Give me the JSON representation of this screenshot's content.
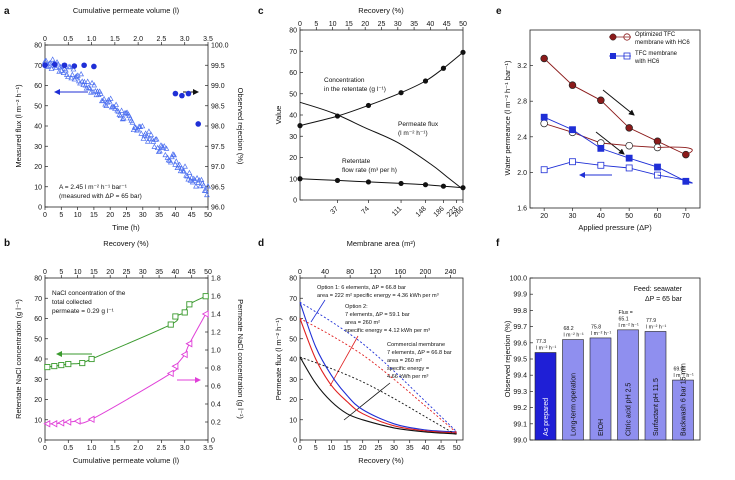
{
  "colors": {
    "blue": "#1f2fd6",
    "lightblue": "#4c6ff0",
    "green": "#3a9a2e",
    "magenta": "#e040d8",
    "darkred": "#8b1a1a",
    "red": "#e02020",
    "black": "#111111",
    "bar_dark": "#1f1fd6",
    "bar_light": "#8f8fef"
  },
  "chart_data": [
    {
      "panel": "a",
      "type": "scatter",
      "xlabel_top": "Cumulative permeate volume (l)",
      "xlim_top": [
        0,
        3.5
      ],
      "xticks_top": [
        "0",
        "0.5",
        "1.0",
        "1.5",
        "2.0",
        "2.5",
        "3.0",
        "3.5"
      ],
      "xlabel": "Time (h)",
      "xlim": [
        0,
        50
      ],
      "xticks": [
        "0",
        "5",
        "10",
        "15",
        "20",
        "25",
        "30",
        "35",
        "40",
        "45",
        "50"
      ],
      "ylabel": "Measured flux (l m⁻² h⁻¹)",
      "ylim": [
        0,
        80
      ],
      "yticks": [
        "0",
        "10",
        "20",
        "30",
        "40",
        "50",
        "60",
        "70",
        "80"
      ],
      "ylabel_right": "Observed rejection (%)",
      "ylim_right": [
        96.0,
        100.0
      ],
      "yticks_right": [
        "96.0",
        "96.5",
        "97.0",
        "97.5",
        "98.0",
        "98.5",
        "99.0",
        "99.5",
        "100.0"
      ],
      "annotation_1": "A = 2.45 l m⁻² h⁻¹ bar⁻¹",
      "annotation_2": "(measured with ΔP = 65 bar)",
      "flux_trend": {
        "x": [
          0,
          5,
          10,
          15,
          20,
          25,
          30,
          35,
          40,
          45,
          50
        ],
        "y": [
          72,
          69,
          64,
          58,
          51,
          44,
          37,
          30,
          23,
          15,
          8
        ]
      },
      "rejection": {
        "x": [
          0,
          3,
          6,
          9,
          12,
          15,
          40,
          42,
          44,
          47
        ],
        "y": [
          99.5,
          99.52,
          99.5,
          99.48,
          99.5,
          99.47,
          98.8,
          98.75,
          98.8,
          98.05
        ]
      }
    },
    {
      "panel": "b",
      "type": "line",
      "xlabel_top": "Recovery (%)",
      "xlim_top": [
        0,
        50
      ],
      "xticks_top": [
        "0",
        "5",
        "10",
        "15",
        "20",
        "25",
        "30",
        "35",
        "40",
        "45",
        "50"
      ],
      "xlabel": "Cumulative permeate volume (l)",
      "xlim": [
        0,
        3.5
      ],
      "xticks": [
        "0",
        "0.5",
        "1.0",
        "1.5",
        "2.0",
        "2.5",
        "3.0",
        "3.5"
      ],
      "ylabel": "Retentate NaCl concentration (g l⁻¹)",
      "ylim": [
        0,
        80
      ],
      "yticks": [
        "0",
        "10",
        "20",
        "30",
        "40",
        "50",
        "60",
        "70",
        "80"
      ],
      "ylabel_right": "Permeate NaCl concentration (g l⁻¹)",
      "ylim_right": [
        0,
        1.8
      ],
      "yticks_right": [
        "0",
        "0.2",
        "0.4",
        "0.6",
        "0.8",
        "1.0",
        "1.2",
        "1.4",
        "1.6",
        "1.8"
      ],
      "annotation": [
        "NaCl concentration of the",
        "total collected",
        "permeate = 0.29 g l⁻¹"
      ],
      "series": [
        {
          "name": "Retentate",
          "x": [
            0.05,
            0.2,
            0.35,
            0.5,
            0.8,
            1.0,
            2.7,
            2.8,
            3.0,
            3.1,
            3.45
          ],
          "y": [
            36,
            36.5,
            37,
            37.5,
            38,
            40,
            57,
            61,
            63,
            67,
            71
          ]
        },
        {
          "name": "Permeate",
          "x": [
            0.05,
            0.2,
            0.35,
            0.5,
            0.7,
            1.0,
            2.7,
            2.8,
            3.0,
            3.1,
            3.45
          ],
          "y": [
            0.18,
            0.18,
            0.19,
            0.2,
            0.21,
            0.23,
            0.74,
            0.82,
            0.95,
            1.07,
            1.4
          ]
        }
      ]
    },
    {
      "panel": "c",
      "type": "line",
      "xlabel_top": "Recovery (%)",
      "xlim_top": [
        0,
        50
      ],
      "xticks_top": [
        "0",
        "5",
        "10",
        "15",
        "20",
        "25",
        "30",
        "35",
        "40",
        "45",
        "50"
      ],
      "xticks_bottom": [
        "37",
        "74",
        "111",
        "148",
        "186",
        "223",
        "260"
      ],
      "ylabel": "Value",
      "ylim": [
        0,
        80
      ],
      "yticks": [
        "0",
        "10",
        "20",
        "30",
        "40",
        "50",
        "60",
        "70",
        "80"
      ],
      "label_conc": [
        "Concentration",
        "in the retentate (g l⁻¹)"
      ],
      "label_flux": [
        "Permeate flux",
        "(l m⁻² h⁻¹)"
      ],
      "label_rate": [
        "Retentate",
        "flow rate (m³ per h)"
      ],
      "series": [
        {
          "name": "Concentration in the retentate",
          "x": [
            0,
            11.5,
            21,
            31,
            38.5,
            44,
            50
          ],
          "y": [
            35,
            39.5,
            44.5,
            50.5,
            56,
            62,
            69.5
          ]
        },
        {
          "name": "Permeate flux",
          "x": [
            0,
            10,
            20,
            30,
            40,
            45,
            50
          ],
          "y": [
            46,
            41,
            34,
            27,
            17,
            11,
            5
          ]
        },
        {
          "name": "Retentate flow rate",
          "x": [
            0,
            11.5,
            21,
            31,
            38.5,
            44,
            50
          ],
          "y": [
            10,
            9.2,
            8.5,
            7.8,
            7.2,
            6.5,
            5.8
          ]
        }
      ]
    },
    {
      "panel": "d",
      "type": "line",
      "xlabel_top": "Membrane area (m²)",
      "xlim_top": [
        0,
        260
      ],
      "xticks_top": [
        "0",
        "40",
        "80",
        "120",
        "160",
        "200",
        "240"
      ],
      "xlabel": "Recovery (%)",
      "xlim": [
        0,
        52
      ],
      "xticks": [
        "0",
        "5",
        "10",
        "15",
        "20",
        "25",
        "30",
        "35",
        "40",
        "45",
        "50"
      ],
      "ylabel": "Permeate flux (l m⁻² h⁻¹)",
      "ylim": [
        0,
        80
      ],
      "yticks": [
        "0",
        "10",
        "20",
        "30",
        "40",
        "50",
        "60",
        "70",
        "80"
      ],
      "option1": [
        "Option 1: 6 elements, ΔP = 66.8 bar",
        "area = 222 m² specific energy = 4.36 kWh per m³"
      ],
      "option2": [
        "Option 2:",
        "7 elements, ΔP = 59.1 bar",
        "area = 260 m²",
        "specific energy = 4.12 kWh per m³"
      ],
      "commercial": [
        "Commercial membrane",
        "7 elements, ΔP = 66.8 bar",
        "area = 260 m²",
        "specific energy =",
        "4.66 kWh per m³"
      ],
      "series": [
        {
          "name": "Option 1",
          "x": [
            0,
            5,
            10,
            15,
            20,
            30,
            40,
            50
          ],
          "y": [
            68,
            46,
            32,
            22,
            15,
            8,
            5,
            4
          ]
        },
        {
          "name": "Option 2",
          "x": [
            0,
            5,
            10,
            15,
            20,
            30,
            40,
            50
          ],
          "y": [
            60,
            40,
            27,
            19,
            13,
            7,
            4.5,
            3.5
          ]
        },
        {
          "name": "Commercial",
          "x": [
            0,
            5,
            10,
            15,
            20,
            30,
            40,
            50
          ],
          "y": [
            41,
            28,
            19,
            13,
            10,
            6,
            4,
            3
          ]
        }
      ]
    },
    {
      "panel": "e",
      "type": "line",
      "xlabel": "Applied pressure (ΔP)",
      "xlim": [
        15,
        75
      ],
      "xticks": [
        "20",
        "30",
        "40",
        "50",
        "60",
        "70"
      ],
      "ylabel": "Water permeance (l m⁻² h⁻¹ bar⁻¹)",
      "ylim": [
        1.6,
        3.6
      ],
      "yticks": [
        "1.6",
        "2.0",
        "2.4",
        "2.8",
        "3.2"
      ],
      "legend": [
        "Optimized TFC",
        "membrane with HC6",
        "TFC membrane",
        "with HC6"
      ],
      "series": [
        {
          "name": "Optimized TFC up",
          "x": [
            20,
            30,
            40,
            50,
            60,
            70
          ],
          "y": [
            3.28,
            2.98,
            2.81,
            2.5,
            2.35,
            2.2
          ]
        },
        {
          "name": "Optimized TFC down",
          "x": [
            20,
            30,
            40,
            50,
            60
          ],
          "y": [
            2.55,
            2.45,
            2.33,
            2.3,
            2.28
          ]
        },
        {
          "name": "TFC up",
          "x": [
            20,
            30,
            40,
            50,
            60,
            70
          ],
          "y": [
            2.62,
            2.48,
            2.27,
            2.16,
            2.06,
            1.9
          ]
        },
        {
          "name": "TFC down",
          "x": [
            20,
            30,
            40,
            50,
            60
          ],
          "y": [
            2.03,
            2.12,
            2.08,
            2.05,
            1.97
          ]
        }
      ]
    },
    {
      "panel": "f",
      "type": "bar",
      "title": [
        "Feed: seawater",
        "ΔP = 65 bar"
      ],
      "ylabel": "Observed rejection (%)",
      "ylim": [
        99.0,
        100.0
      ],
      "yticks": [
        "99.0",
        "99.1",
        "99.2",
        "99.3",
        "99.4",
        "99.5",
        "99.6",
        "99.7",
        "99.8",
        "99.9",
        "100.0"
      ],
      "categories": [
        "As prepared",
        "Long-term operation",
        "EtOH",
        "Citric acid pH 2.5",
        "Surfactant pH 11.5",
        "Backwash 6 bar 15 min"
      ],
      "values": [
        99.54,
        99.62,
        99.63,
        99.68,
        99.67,
        99.37
      ],
      "flux_labels": [
        [
          "77.3",
          "l m⁻² h⁻¹"
        ],
        [
          "68.2",
          "l m⁻² h⁻¹"
        ],
        [
          "75.8",
          "l m⁻² h⁻¹"
        ],
        [
          "Flux =",
          "65.1",
          "l m⁻² h⁻¹"
        ],
        [
          "77.9",
          "l m⁻² h⁻¹"
        ],
        [
          "69.8",
          "l m⁻² h⁻¹"
        ]
      ]
    }
  ]
}
